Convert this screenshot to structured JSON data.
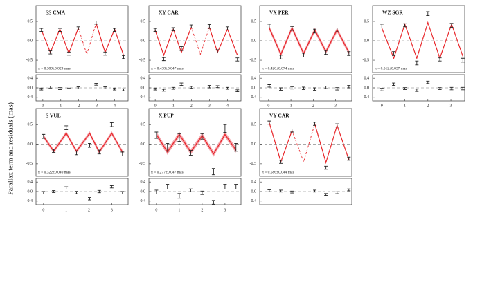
{
  "ylabel": "Parallax term and residuals (mas)",
  "chart_data": [
    {
      "type": "line",
      "title": "SS CMA",
      "annotation": "π = 0.389±0.029 mas",
      "xlim": [
        -0.38,
        4.75
      ],
      "xticks": [
        0,
        1,
        2,
        3,
        4
      ],
      "ylim": [
        -0.82,
        0.91
      ],
      "yticks": [
        -0.5,
        {
          "value": 0,
          "label": "0.0"
        },
        0.5
      ],
      "residual_ylim": [
        -0.55,
        0.55
      ],
      "residual_yticks": [
        -0.4,
        {
          "value": 0,
          "label": "0.0"
        },
        0.4
      ],
      "x": [
        -0.08,
        0.42,
        0.95,
        1.45,
        1.98,
        2.97,
        3.47,
        4.0,
        4.5
      ],
      "observed": {
        "color": "#222222",
        "values": [
          0.28,
          -0.3,
          0.28,
          -0.33,
          0.32,
          0.47,
          -0.33,
          0.28,
          -0.42
        ],
        "errors": [
          0.04,
          0.04,
          0.04,
          0.04,
          0.04,
          0.04,
          0.04,
          0.04,
          0.04
        ]
      },
      "residuals": {
        "values": [
          -0.05,
          0.03,
          -0.03,
          0.03,
          0.0,
          0.15,
          0.0,
          -0.05,
          -0.08
        ]
      },
      "model": {
        "color": "#e8262a",
        "x": [
          -0.08,
          0.42,
          0.95,
          1.45,
          1.98,
          2.45,
          2.97,
          3.47,
          4.0,
          4.5
        ],
        "values": [
          0.28,
          -0.3,
          0.3,
          -0.32,
          0.33,
          null,
          0.45,
          -0.3,
          0.3,
          -0.38
        ]
      },
      "model_gap": {
        "x": [
          1.98,
          2.45,
          2.97
        ],
        "values": [
          0.33,
          -0.35,
          0.45
        ]
      }
    },
    {
      "type": "line",
      "title": "XY CAR",
      "annotation": "π = 0.438±0.047 mas",
      "xlim": [
        -0.35,
        4.75
      ],
      "xticks": [
        0,
        1,
        2,
        3,
        4
      ],
      "ylim": [
        -0.82,
        0.91
      ],
      "yticks": [
        -0.5,
        {
          "value": 0,
          "label": "0.0"
        },
        0.5
      ],
      "residual_ylim": [
        -0.55,
        0.55
      ],
      "residual_yticks": [
        -0.4,
        {
          "value": 0,
          "label": "0.0"
        },
        0.4
      ],
      "x": [
        0.0,
        0.47,
        1.0,
        1.45,
        2.0,
        3.0,
        3.45,
        4.0,
        4.55
      ],
      "observed": {
        "color": "#222222",
        "values": [
          0.28,
          -0.47,
          0.3,
          -0.2,
          0.37,
          0.37,
          -0.27,
          0.32,
          -0.48
        ],
        "errors": [
          0.04,
          0.04,
          0.04,
          0.05,
          0.04,
          0.05,
          0.04,
          0.04,
          0.04
        ]
      },
      "residuals": {
        "values": [
          -0.05,
          -0.1,
          -0.02,
          0.15,
          0.02,
          0.05,
          0.05,
          -0.02,
          -0.12
        ]
      },
      "model": {
        "color": "#e8262a",
        "x": [
          0.0,
          0.47,
          1.0,
          1.45,
          2.0,
          2.5,
          3.0,
          3.45,
          4.0,
          4.55
        ],
        "values": [
          0.27,
          -0.37,
          0.3,
          -0.3,
          0.35,
          null,
          0.35,
          -0.3,
          0.3,
          -0.37
        ]
      },
      "model_gap": {
        "x": [
          2.0,
          2.5,
          3.0
        ],
        "values": [
          0.35,
          -0.35,
          0.35
        ]
      }
    },
    {
      "type": "line",
      "title": "VX PER",
      "annotation": "π = 0.420±0.074 mas",
      "xlim": [
        -0.4,
        3.73
      ],
      "xticks": [
        0,
        1,
        2,
        3
      ],
      "ylim": [
        -0.82,
        0.91
      ],
      "yticks": [
        -0.5,
        {
          "value": 0,
          "label": "0.0"
        },
        0.5
      ],
      "residual_ylim": [
        -0.55,
        0.55
      ],
      "residual_yticks": [
        -0.4,
        {
          "value": 0,
          "label": "0.0"
        },
        0.4
      ],
      "x": [
        0.03,
        0.55,
        1.05,
        1.57,
        2.07,
        2.57,
        3.07,
        3.6
      ],
      "observed": {
        "color": "#222222",
        "values": [
          0.38,
          -0.42,
          0.32,
          -0.37,
          0.25,
          -0.3,
          0.28,
          -0.33
        ],
        "errors": [
          0.05,
          0.05,
          0.05,
          0.05,
          0.05,
          0.05,
          0.05,
          0.05
        ]
      },
      "residuals": {
        "values": [
          0.08,
          -0.05,
          0.0,
          -0.02,
          -0.05,
          0.02,
          -0.04,
          0.05
        ]
      },
      "model": {
        "color": "#e8262a",
        "x": [
          0.03,
          0.55,
          1.05,
          1.57,
          2.07,
          2.57,
          3.07,
          3.6
        ],
        "values": [
          0.33,
          -0.35,
          0.33,
          -0.33,
          0.28,
          -0.28,
          0.28,
          -0.3
        ]
      },
      "band": 0.06,
      "band_color": "#f4a9b0"
    },
    {
      "type": "line",
      "title": "WZ SGR",
      "annotation": "π = 0.512±0.037 mas",
      "xlim": [
        -0.4,
        3.6
      ],
      "xticks": [
        0,
        1,
        2,
        3
      ],
      "ylim": [
        -0.82,
        0.91
      ],
      "yticks": [
        -0.5,
        {
          "value": 0,
          "label": "0.0"
        },
        0.5
      ],
      "residual_ylim": [
        -0.55,
        0.55
      ],
      "residual_yticks": [
        -0.4,
        {
          "value": 0,
          "label": "0.0"
        },
        0.4
      ],
      "x": [
        0.0,
        0.52,
        1.0,
        1.52,
        2.0,
        2.52,
        3.03,
        3.52
      ],
      "observed": {
        "color": "#222222",
        "values": [
          0.38,
          -0.33,
          0.4,
          -0.57,
          0.7,
          -0.48,
          0.4,
          -0.5
        ],
        "errors": [
          0.05,
          0.05,
          0.04,
          0.05,
          0.05,
          0.04,
          0.05,
          0.05
        ]
      },
      "residuals": {
        "values": [
          -0.07,
          0.15,
          -0.03,
          -0.1,
          0.23,
          -0.03,
          -0.03,
          -0.03
        ]
      },
      "model": {
        "color": "#e8262a",
        "x": [
          0.0,
          0.52,
          1.0,
          1.52,
          2.0,
          2.52,
          3.03,
          3.52
        ],
        "values": [
          0.33,
          -0.45,
          0.43,
          -0.45,
          0.47,
          -0.45,
          0.43,
          -0.4
        ]
      }
    },
    {
      "type": "line",
      "title": "S VUL",
      "annotation": "π = 0.322±0.040 mas",
      "xlim": [
        -0.33,
        3.72
      ],
      "xticks": [
        0,
        1,
        2,
        3
      ],
      "ylim": [
        -0.82,
        0.91
      ],
      "yticks": [
        -0.5,
        {
          "value": 0,
          "label": "0.0"
        },
        0.5
      ],
      "residual_ylim": [
        -0.55,
        0.55
      ],
      "residual_yticks": [
        -0.4,
        {
          "value": 0,
          "label": "0.0"
        },
        0.4
      ],
      "x": [
        0.0,
        0.45,
        1.0,
        1.45,
        2.03,
        2.45,
        3.0,
        3.47
      ],
      "observed": {
        "color": "#222222",
        "values": [
          0.2,
          -0.17,
          0.42,
          -0.22,
          -0.03,
          -0.2,
          0.5,
          -0.25
        ],
        "errors": [
          0.05,
          0.04,
          0.05,
          0.05,
          0.05,
          0.05,
          0.05,
          0.05
        ]
      },
      "residuals": {
        "values": [
          -0.05,
          0.0,
          0.15,
          -0.04,
          -0.3,
          0.0,
          0.2,
          -0.05
        ]
      },
      "model": {
        "color": "#e8262a",
        "x": [
          0.0,
          0.45,
          1.0,
          1.45,
          2.03,
          2.45,
          3.0,
          3.47
        ],
        "values": [
          0.2,
          -0.18,
          0.28,
          -0.18,
          0.28,
          -0.2,
          0.28,
          -0.2
        ]
      },
      "band": 0.05,
      "band_color": "#f4a9b0"
    },
    {
      "type": "line",
      "title": "X PUP",
      "annotation": "π = 0.277±0.047 mas",
      "xlim": [
        -0.33,
        3.7
      ],
      "xticks": [
        0,
        1,
        2,
        3
      ],
      "ylim": [
        -0.82,
        0.91
      ],
      "yticks": [
        -0.5,
        {
          "value": 0,
          "label": "0.0"
        },
        0.5
      ],
      "residual_ylim": [
        -0.55,
        0.55
      ],
      "residual_yticks": [
        -0.4,
        {
          "value": 0,
          "label": "0.0"
        },
        0.4
      ],
      "x": [
        0.0,
        0.48,
        1.0,
        1.5,
        2.0,
        2.5,
        3.0,
        3.48
      ],
      "observed": {
        "color": "#222222",
        "values": [
          0.23,
          -0.08,
          0.17,
          -0.22,
          0.2,
          -0.7,
          0.4,
          -0.08
        ],
        "errors": [
          0.08,
          0.1,
          0.1,
          0.06,
          0.07,
          0.08,
          0.1,
          0.1
        ]
      },
      "residuals": {
        "values": [
          -0.02,
          0.2,
          -0.18,
          0.05,
          -0.05,
          -0.45,
          0.2,
          0.2
        ]
      },
      "model": {
        "color": "#e8262a",
        "x": [
          0.0,
          0.48,
          1.0,
          1.5,
          2.0,
          2.5,
          3.0,
          3.48
        ],
        "values": [
          0.25,
          -0.2,
          0.25,
          -0.2,
          0.22,
          -0.25,
          0.25,
          -0.15
        ]
      },
      "band": 0.07,
      "band_color": "#f4a9b0"
    },
    {
      "type": "line",
      "title": "VY CAR",
      "annotation": "π = 0.586±0.044 mas",
      "xlim": [
        -0.4,
        3.73
      ],
      "xticks": [],
      "ylim": [
        -0.82,
        0.91
      ],
      "yticks": [
        -0.5,
        {
          "value": 0,
          "label": "0.0"
        },
        0.5
      ],
      "residual_ylim": [
        -0.55,
        0.55
      ],
      "residual_yticks": [
        -0.4,
        {
          "value": 0,
          "label": "0.0"
        },
        0.4
      ],
      "x": [
        0.03,
        0.55,
        1.05,
        2.07,
        2.57,
        3.07,
        3.6
      ],
      "observed": {
        "color": "#222222",
        "values": [
          0.55,
          -0.45,
          0.35,
          0.52,
          -0.6,
          0.48,
          -0.37
        ],
        "errors": [
          0.04,
          0.04,
          0.04,
          0.04,
          0.04,
          0.04,
          0.04
        ]
      },
      "residuals": {
        "values": [
          0.03,
          0.02,
          -0.02,
          0.02,
          -0.12,
          -0.05,
          0.07
        ]
      },
      "model": {
        "color": "#e8262a",
        "x": [
          0.03,
          0.55,
          1.05,
          1.57,
          2.07,
          2.57,
          3.07,
          3.6
        ],
        "values": [
          0.55,
          -0.45,
          0.35,
          null,
          0.52,
          -0.47,
          0.48,
          -0.4
        ]
      },
      "model_gap": {
        "x": [
          1.05,
          1.57,
          2.07
        ],
        "values": [
          0.35,
          -0.45,
          0.52
        ]
      }
    }
  ]
}
